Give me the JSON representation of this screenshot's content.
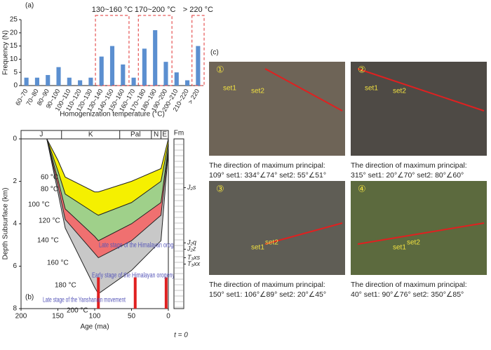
{
  "chart_data": [
    {
      "type": "bar",
      "panel_label": "(a)",
      "x_label": "Homogenization temperature (°C)",
      "y_label": "Frequency (N)",
      "categories": [
        "60~70",
        "70~80",
        "80~90",
        "90~100",
        "100~110",
        "110~120",
        "120~130",
        "130~140",
        "140~150",
        "150~160",
        "160~170",
        "170~180",
        "180~190",
        "190~200",
        "200~210",
        "210~220",
        "> 220"
      ],
      "values": [
        3,
        3,
        4,
        7,
        3,
        2,
        3,
        11,
        15,
        8,
        3,
        14,
        21,
        9,
        5,
        2,
        15
      ],
      "color": "#5b8fd0",
      "ylim": [
        0,
        25
      ],
      "yticks": [
        0,
        5,
        10,
        15,
        20,
        25
      ],
      "annotations": [
        "130~160 °C",
        "170~200 °C",
        "> 220 °C"
      ]
    },
    {
      "type": "burial",
      "panel_label": "(b)",
      "x_label": "Age (ma)",
      "y_label": "Depth Subsurface (km)",
      "column_title": "Fm",
      "column_foot": "t = 0",
      "xlim": [
        200,
        0
      ],
      "xticks": [
        200,
        150,
        100,
        50,
        0
      ],
      "ylim": [
        0,
        8
      ],
      "yticks": [
        0,
        2,
        4,
        6,
        8
      ],
      "periods": [
        {
          "label": "J",
          "start": 200,
          "end": 145
        },
        {
          "label": "K",
          "start": 145,
          "end": 66
        },
        {
          "label": "Pal",
          "start": 66,
          "end": 23
        },
        {
          "label": "N",
          "start": 23,
          "end": 10
        },
        {
          "label": "E",
          "start": 10,
          "end": 0
        }
      ],
      "x": [
        165,
        150,
        140,
        100,
        95,
        50,
        10,
        0
      ],
      "series": [
        {
          "color": "#222",
          "fill": "#f5f000",
          "values": [
            0,
            1.0,
            1.8,
            2.5,
            2.5,
            2.0,
            1.4,
            0
          ]
        },
        {
          "color": "#222",
          "fill": "#9fd08a",
          "values": [
            0,
            1.5,
            2.6,
            3.5,
            3.6,
            3.0,
            2.0,
            0.2
          ]
        },
        {
          "color": "#222",
          "fill": "#f07070",
          "values": [
            0,
            1.9,
            3.3,
            4.6,
            4.8,
            4.0,
            3.0,
            0.4
          ]
        },
        {
          "color": "#222",
          "fill": "#c8c8c8",
          "values": [
            0,
            2.2,
            3.8,
            5.4,
            5.6,
            4.8,
            3.6,
            0.5
          ]
        },
        {
          "color": "#222",
          "values": [
            0,
            2.5,
            4.2,
            7.0,
            7.3,
            6.2,
            4.8,
            0.6
          ]
        }
      ],
      "isotherms": [
        "60 °C",
        "80 °C",
        "100 °C",
        "120 °C",
        "140 °C",
        "160 °C",
        "180 °C",
        "200 °C"
      ],
      "events": [
        95,
        45,
        3
      ],
      "stages": [
        "Late stage of the Himalayan orogeny",
        "Early stage of the Himalayan orogeny",
        "Late stage of the Yanshanian movement"
      ],
      "formations": [
        {
          "label": "J₂s",
          "depth": 2.3
        },
        {
          "label": "J₂q",
          "depth": 4.9
        },
        {
          "label": "J₂z",
          "depth": 5.2
        },
        {
          "label": "T₃xs",
          "depth": 5.6
        },
        {
          "label": "T₃xx",
          "depth": 5.9
        }
      ]
    }
  ],
  "photos": {
    "panel_label": "(c)",
    "items": [
      {
        "number": "①",
        "set1": "set1",
        "set2": "set2",
        "caption": "The direction of maximum principal:",
        "orientation": "109° set1: 334°∠74°   set2: 55°∠51°"
      },
      {
        "number": "②",
        "set1": "set1",
        "set2": "set2",
        "caption": "The direction of maximum principal:",
        "orientation": "315° set1: 20°∠70°   set2: 80°∠60°"
      },
      {
        "number": "③",
        "set1": "set1",
        "set2": "set2",
        "caption": "The direction of maximum principal:",
        "orientation": "150° set1: 106°∠89°   set2: 20°∠45°"
      },
      {
        "number": "④",
        "set1": "set1",
        "set2": "set2",
        "caption": "The direction of maximum principal:",
        "orientation": "40° set1: 90°∠76°   set2: 350°∠85°"
      }
    ]
  }
}
